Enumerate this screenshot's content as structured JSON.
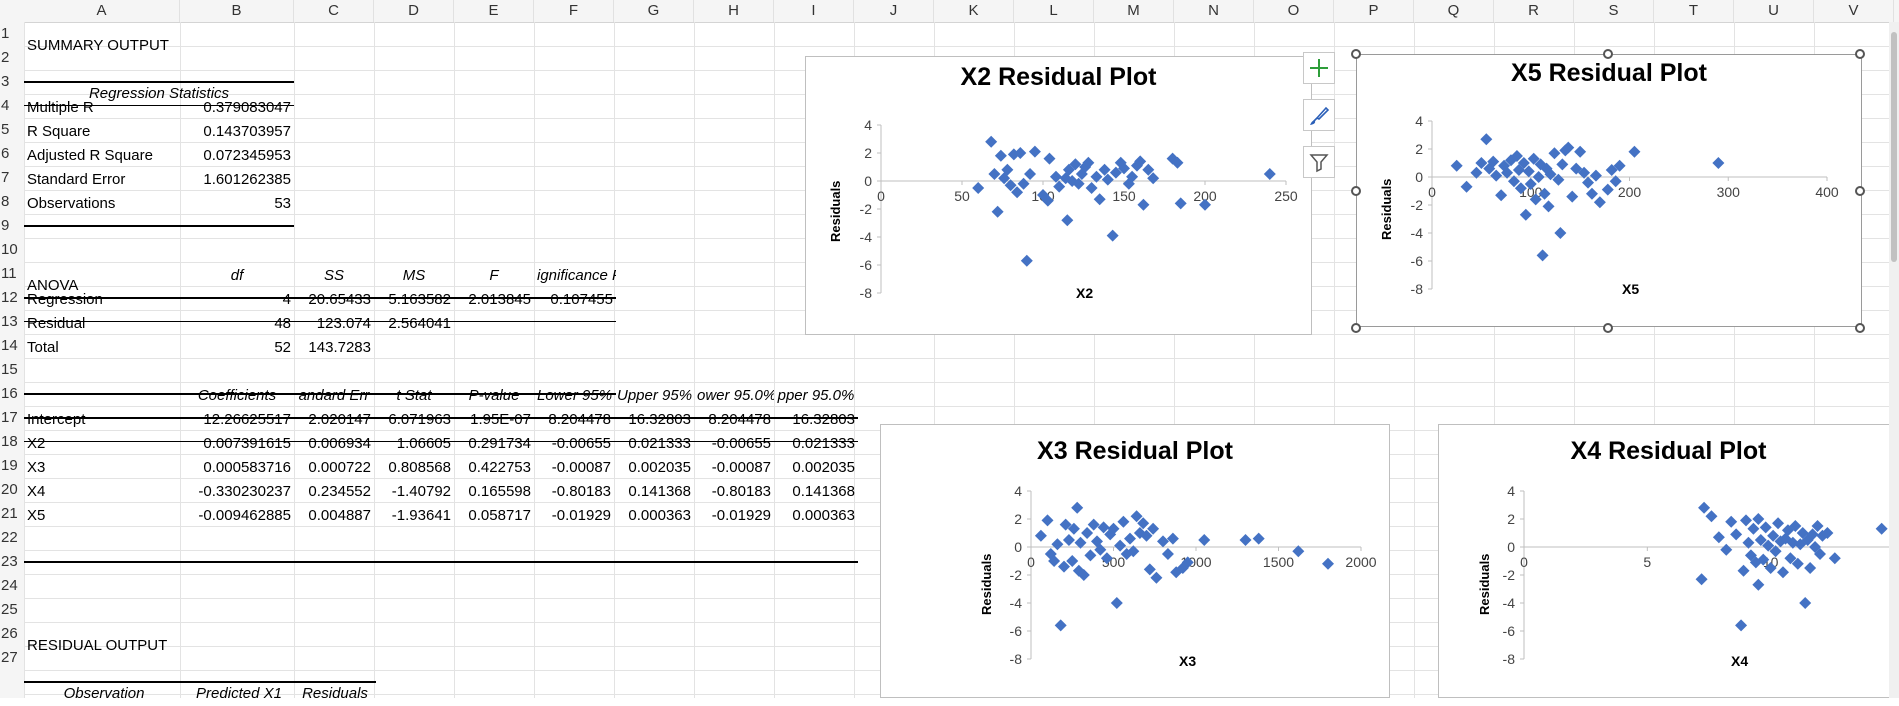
{
  "columns": [
    "A",
    "B",
    "C",
    "D",
    "E",
    "F",
    "G",
    "H",
    "I",
    "J",
    "K",
    "L",
    "M",
    "N",
    "O",
    "P",
    "Q",
    "R",
    "S",
    "T",
    "U",
    "V"
  ],
  "rows": [
    "1",
    "2",
    "3",
    "4",
    "5",
    "6",
    "7",
    "8",
    "9",
    "10",
    "11",
    "12",
    "13",
    "14",
    "15",
    "16",
    "17",
    "18",
    "19",
    "20",
    "21",
    "22",
    "23",
    "24",
    "25",
    "26",
    "27"
  ],
  "summary": {
    "title": "SUMMARY OUTPUT",
    "reg_stats_header": "Regression Statistics",
    "stats": [
      {
        "label": "Multiple R",
        "value": "0.379083047"
      },
      {
        "label": "R Square",
        "value": "0.143703957"
      },
      {
        "label": "Adjusted R Square",
        "value": "0.072345953"
      },
      {
        "label": "Standard Error",
        "value": "1.601262385"
      },
      {
        "label": "Observations",
        "value": "53"
      }
    ]
  },
  "anova": {
    "title": "ANOVA",
    "headers": [
      "df",
      "SS",
      "MS",
      "F",
      "ignificance F"
    ],
    "rows": [
      {
        "label": "Regression",
        "df": "4",
        "ss": "20.65433",
        "ms": "5.163582",
        "f": "2.013845",
        "sig": "0.107455"
      },
      {
        "label": "Residual",
        "df": "48",
        "ss": "123.074",
        "ms": "2.564041",
        "f": "",
        "sig": ""
      },
      {
        "label": "Total",
        "df": "52",
        "ss": "143.7283",
        "ms": "",
        "f": "",
        "sig": ""
      }
    ]
  },
  "coef": {
    "headers": [
      "Coefficients",
      "andard Err",
      "t Stat",
      "P-value",
      "Lower 95%",
      "Upper 95%",
      "ower 95.0%",
      "pper 95.0%"
    ],
    "rows": [
      {
        "label": "Intercept",
        "v": [
          "12.26625517",
          "2.020147",
          "6.071963",
          "1.95E-07",
          "8.204478",
          "16.32803",
          "8.204478",
          "16.32803"
        ]
      },
      {
        "label": "X2",
        "v": [
          "0.007391615",
          "0.006934",
          "1.06605",
          "0.291734",
          "-0.00655",
          "0.021333",
          "-0.00655",
          "0.021333"
        ]
      },
      {
        "label": "X3",
        "v": [
          "0.000583716",
          "0.000722",
          "0.808568",
          "0.422753",
          "-0.00087",
          "0.002035",
          "-0.00087",
          "0.002035"
        ]
      },
      {
        "label": "X4",
        "v": [
          "-0.330230237",
          "0.234552",
          "-1.40792",
          "0.165598",
          "-0.80183",
          "0.141368",
          "-0.80183",
          "0.141368"
        ]
      },
      {
        "label": "X5",
        "v": [
          "-0.009462885",
          "0.004887",
          "-1.93641",
          "0.058717",
          "-0.01929",
          "0.000363",
          "-0.01929",
          "0.000363"
        ]
      }
    ]
  },
  "residual": {
    "title": "RESIDUAL OUTPUT",
    "headers": [
      "Observation",
      "Predicted X1",
      "Residuals"
    ]
  },
  "side_buttons": [
    "plus-icon",
    "brush-icon",
    "filter-icon"
  ],
  "chart_data": [
    {
      "type": "scatter",
      "title": "X2  Residual Plot",
      "xlabel": "X2",
      "ylabel": "Residuals",
      "xlim": [
        0,
        250
      ],
      "ylim": [
        -8,
        4
      ],
      "xticks": [
        0,
        50,
        100,
        150,
        200,
        250
      ],
      "yticks": [
        4,
        2,
        0,
        -2,
        -4,
        -6,
        -8
      ],
      "color": "#4472c4",
      "points": [
        [
          60,
          -0.5
        ],
        [
          68,
          2.8
        ],
        [
          70,
          0.5
        ],
        [
          72,
          -2.2
        ],
        [
          74,
          1.8
        ],
        [
          76,
          0.2
        ],
        [
          78,
          0.8
        ],
        [
          80,
          -0.3
        ],
        [
          82,
          1.9
        ],
        [
          84,
          -0.8
        ],
        [
          86,
          2.0
        ],
        [
          88,
          -0.2
        ],
        [
          90,
          -5.7
        ],
        [
          92,
          0.5
        ],
        [
          95,
          2.1
        ],
        [
          100,
          -1.0
        ],
        [
          103,
          -1.4
        ],
        [
          104,
          1.6
        ],
        [
          108,
          0.3
        ],
        [
          110,
          -0.4
        ],
        [
          114,
          0.2
        ],
        [
          115,
          -2.8
        ],
        [
          116,
          0.8
        ],
        [
          118,
          0.0
        ],
        [
          120,
          1.2
        ],
        [
          122,
          -0.2
        ],
        [
          124,
          0.5
        ],
        [
          126,
          1.0
        ],
        [
          128,
          1.3
        ],
        [
          130,
          -0.5
        ],
        [
          133,
          0.3
        ],
        [
          135,
          -1.3
        ],
        [
          138,
          0.8
        ],
        [
          140,
          0.1
        ],
        [
          143,
          -3.9
        ],
        [
          145,
          0.6
        ],
        [
          148,
          1.3
        ],
        [
          150,
          0.9
        ],
        [
          153,
          -0.2
        ],
        [
          155,
          0.3
        ],
        [
          158,
          1.1
        ],
        [
          160,
          1.4
        ],
        [
          162,
          -1.7
        ],
        [
          165,
          0.8
        ],
        [
          168,
          0.2
        ],
        [
          180,
          1.6
        ],
        [
          183,
          1.3
        ],
        [
          185,
          -1.6
        ],
        [
          200,
          -1.7
        ],
        [
          240,
          0.5
        ]
      ]
    },
    {
      "type": "scatter",
      "title": "X5  Residual Plot",
      "xlabel": "X5",
      "ylabel": "Residuals",
      "xlim": [
        0,
        400
      ],
      "ylim": [
        -8,
        4
      ],
      "xticks": [
        0,
        100,
        200,
        300,
        400
      ],
      "yticks": [
        4,
        2,
        0,
        -2,
        -4,
        -6,
        -8
      ],
      "color": "#4472c4",
      "points": [
        [
          25,
          0.8
        ],
        [
          35,
          -0.7
        ],
        [
          45,
          0.3
        ],
        [
          50,
          1.0
        ],
        [
          55,
          2.7
        ],
        [
          58,
          0.6
        ],
        [
          62,
          1.1
        ],
        [
          65,
          0.1
        ],
        [
          70,
          -1.3
        ],
        [
          73,
          0.8
        ],
        [
          76,
          0.3
        ],
        [
          80,
          1.2
        ],
        [
          83,
          -0.3
        ],
        [
          86,
          1.5
        ],
        [
          88,
          0.5
        ],
        [
          90,
          -0.8
        ],
        [
          93,
          1.0
        ],
        [
          95,
          -2.7
        ],
        [
          98,
          0.4
        ],
        [
          100,
          -0.5
        ],
        [
          103,
          1.3
        ],
        [
          105,
          -1.6
        ],
        [
          108,
          0.0
        ],
        [
          110,
          0.9
        ],
        [
          112,
          -5.6
        ],
        [
          114,
          -1.2
        ],
        [
          116,
          0.6
        ],
        [
          118,
          -2.1
        ],
        [
          120,
          0.2
        ],
        [
          124,
          1.7
        ],
        [
          128,
          -0.2
        ],
        [
          130,
          -4.0
        ],
        [
          132,
          0.9
        ],
        [
          135,
          1.9
        ],
        [
          138,
          2.1
        ],
        [
          142,
          -1.4
        ],
        [
          146,
          0.6
        ],
        [
          150,
          1.8
        ],
        [
          154,
          0.3
        ],
        [
          158,
          -0.4
        ],
        [
          162,
          -1.2
        ],
        [
          166,
          0.1
        ],
        [
          170,
          -1.8
        ],
        [
          178,
          -0.9
        ],
        [
          182,
          0.5
        ],
        [
          186,
          -0.3
        ],
        [
          190,
          0.8
        ],
        [
          205,
          1.8
        ],
        [
          290,
          1.0
        ]
      ]
    },
    {
      "type": "scatter",
      "title": "X3  Residual Plot",
      "xlabel": "X3",
      "ylabel": "Residuals",
      "xlim": [
        0,
        2000
      ],
      "ylim": [
        -8,
        4
      ],
      "xticks": [
        0,
        500,
        1000,
        1500,
        2000
      ],
      "yticks": [
        4,
        2,
        0,
        -2,
        -4,
        -6,
        -8
      ],
      "color": "#4472c4",
      "points": [
        [
          60,
          0.8
        ],
        [
          100,
          1.9
        ],
        [
          120,
          -0.5
        ],
        [
          140,
          -1.0
        ],
        [
          160,
          0.2
        ],
        [
          180,
          -5.6
        ],
        [
          200,
          -1.4
        ],
        [
          210,
          1.6
        ],
        [
          230,
          0.5
        ],
        [
          250,
          -1.0
        ],
        [
          260,
          1.3
        ],
        [
          280,
          2.8
        ],
        [
          290,
          -1.7
        ],
        [
          300,
          0.3
        ],
        [
          320,
          -2.0
        ],
        [
          340,
          1.0
        ],
        [
          360,
          -0.6
        ],
        [
          380,
          1.6
        ],
        [
          400,
          0.4
        ],
        [
          420,
          -0.2
        ],
        [
          440,
          1.4
        ],
        [
          460,
          -0.8
        ],
        [
          480,
          0.9
        ],
        [
          500,
          1.3
        ],
        [
          520,
          -4.0
        ],
        [
          540,
          0.1
        ],
        [
          560,
          1.8
        ],
        [
          580,
          -0.5
        ],
        [
          600,
          0.6
        ],
        [
          620,
          -0.3
        ],
        [
          640,
          2.2
        ],
        [
          660,
          1.0
        ],
        [
          680,
          1.7
        ],
        [
          700,
          0.8
        ],
        [
          720,
          -1.6
        ],
        [
          740,
          1.3
        ],
        [
          760,
          -2.2
        ],
        [
          800,
          0.4
        ],
        [
          830,
          -0.5
        ],
        [
          860,
          0.6
        ],
        [
          880,
          -1.8
        ],
        [
          920,
          -1.5
        ],
        [
          950,
          -1.1
        ],
        [
          1050,
          0.5
        ],
        [
          1300,
          0.5
        ],
        [
          1380,
          0.6
        ],
        [
          1620,
          -0.3
        ],
        [
          1800,
          -1.2
        ]
      ]
    },
    {
      "type": "scatter",
      "title": "X4  Residual Plot",
      "xlabel": "X4",
      "ylabel": "Residuals",
      "xlim": [
        0,
        15
      ],
      "ylim": [
        -8,
        4
      ],
      "xticks": [
        0,
        5,
        10
      ],
      "yticks": [
        4,
        2,
        0,
        -2,
        -4,
        -6,
        -8
      ],
      "color": "#4472c4",
      "points": [
        [
          7.2,
          -2.3
        ],
        [
          7.3,
          2.8
        ],
        [
          7.6,
          2.2
        ],
        [
          7.9,
          0.7
        ],
        [
          8.2,
          -0.2
        ],
        [
          8.4,
          1.8
        ],
        [
          8.6,
          0.9
        ],
        [
          8.8,
          -5.6
        ],
        [
          8.9,
          -1.7
        ],
        [
          9.0,
          1.9
        ],
        [
          9.1,
          0.3
        ],
        [
          9.2,
          -0.6
        ],
        [
          9.3,
          1.3
        ],
        [
          9.4,
          -1.1
        ],
        [
          9.5,
          2.0
        ],
        [
          9.5,
          -2.7
        ],
        [
          9.6,
          0.5
        ],
        [
          9.7,
          -0.9
        ],
        [
          9.8,
          1.4
        ],
        [
          9.9,
          0.1
        ],
        [
          10.0,
          -1.5
        ],
        [
          10.1,
          0.8
        ],
        [
          10.2,
          -0.3
        ],
        [
          10.3,
          1.7
        ],
        [
          10.4,
          0.4
        ],
        [
          10.5,
          -1.8
        ],
        [
          10.6,
          0.6
        ],
        [
          10.7,
          1.2
        ],
        [
          10.8,
          -0.8
        ],
        [
          10.9,
          0.3
        ],
        [
          11.0,
          1.5
        ],
        [
          11.1,
          -1.2
        ],
        [
          11.2,
          0.2
        ],
        [
          11.3,
          1.0
        ],
        [
          11.4,
          -4.0
        ],
        [
          11.5,
          0.5
        ],
        [
          11.6,
          -1.5
        ],
        [
          11.7,
          0.9
        ],
        [
          11.8,
          0.0
        ],
        [
          11.9,
          1.5
        ],
        [
          12.0,
          -0.5
        ],
        [
          12.1,
          0.8
        ],
        [
          12.3,
          1.0
        ],
        [
          12.6,
          -0.8
        ],
        [
          14.5,
          1.3
        ]
      ]
    }
  ]
}
